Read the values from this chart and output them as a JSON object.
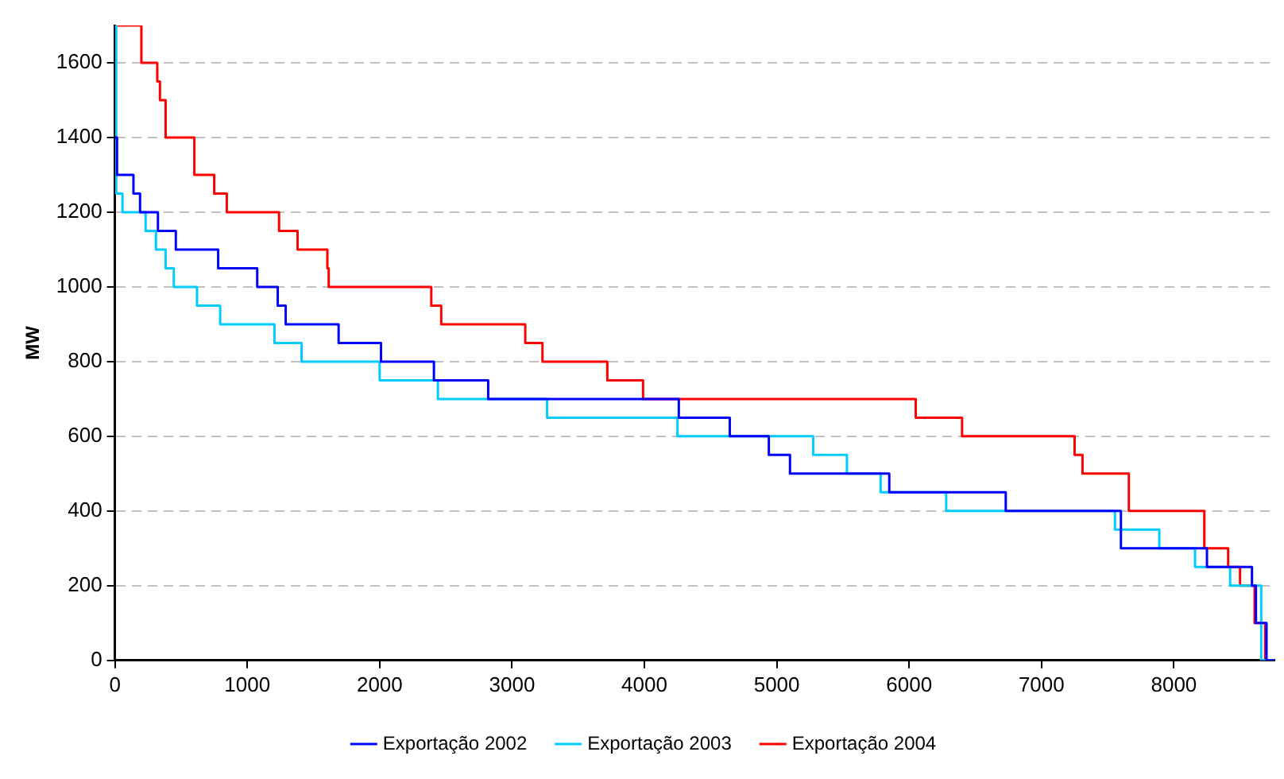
{
  "chart_data": {
    "type": "step",
    "ylabel": "MW",
    "xlim": [
      0,
      8760
    ],
    "xticks": [
      0,
      1000,
      2000,
      3000,
      4000,
      5000,
      6000,
      7000,
      8000
    ],
    "ylim": [
      0,
      1700
    ],
    "yticks": [
      0,
      200,
      400,
      600,
      800,
      1000,
      1200,
      1400,
      1600
    ],
    "grid": "y",
    "legend": "bottom",
    "marker": "none",
    "line_style": "solid",
    "series": [
      {
        "name": "Exportação 2002",
        "color": "#0000ff",
        "x": [
          0,
          16,
          140,
          190,
          325,
          460,
          780,
          1075,
          1230,
          1290,
          1690,
          2010,
          2410,
          2820,
          4260,
          4645,
          4940,
          5100,
          5850,
          6730,
          7600,
          8250,
          8590,
          8620,
          8700,
          8760
        ],
        "values": [
          1400,
          1300,
          1250,
          1200,
          1150,
          1100,
          1050,
          1000,
          950,
          900,
          850,
          800,
          750,
          700,
          650,
          600,
          550,
          500,
          450,
          400,
          300,
          250,
          200,
          100,
          0,
          0
        ]
      },
      {
        "name": "Exportação 2003",
        "color": "#00ccff",
        "x": [
          0,
          10,
          57,
          232,
          310,
          383,
          445,
          620,
          795,
          1205,
          1410,
          2000,
          2440,
          3265,
          4250,
          5275,
          5530,
          5785,
          6280,
          7555,
          7890,
          8160,
          8425,
          8660,
          8760
        ],
        "values": [
          1700,
          1250,
          1200,
          1150,
          1100,
          1050,
          1000,
          950,
          900,
          850,
          800,
          750,
          700,
          650,
          600,
          550,
          500,
          450,
          400,
          350,
          300,
          250,
          200,
          0,
          0
        ]
      },
      {
        "name": "Exportação 2004",
        "color": "#ff0000",
        "x": [
          0,
          200,
          320,
          340,
          383,
          600,
          750,
          845,
          1240,
          1380,
          1605,
          1615,
          2390,
          2465,
          3100,
          3230,
          3720,
          3990,
          6050,
          6400,
          7250,
          7310,
          7660,
          8230,
          8410,
          8500,
          8610,
          8690,
          8760
        ],
        "values": [
          1700,
          1600,
          1550,
          1500,
          1400,
          1300,
          1250,
          1200,
          1150,
          1100,
          1050,
          1000,
          950,
          900,
          850,
          800,
          750,
          700,
          650,
          600,
          550,
          500,
          400,
          300,
          250,
          200,
          100,
          0,
          0
        ]
      }
    ]
  }
}
